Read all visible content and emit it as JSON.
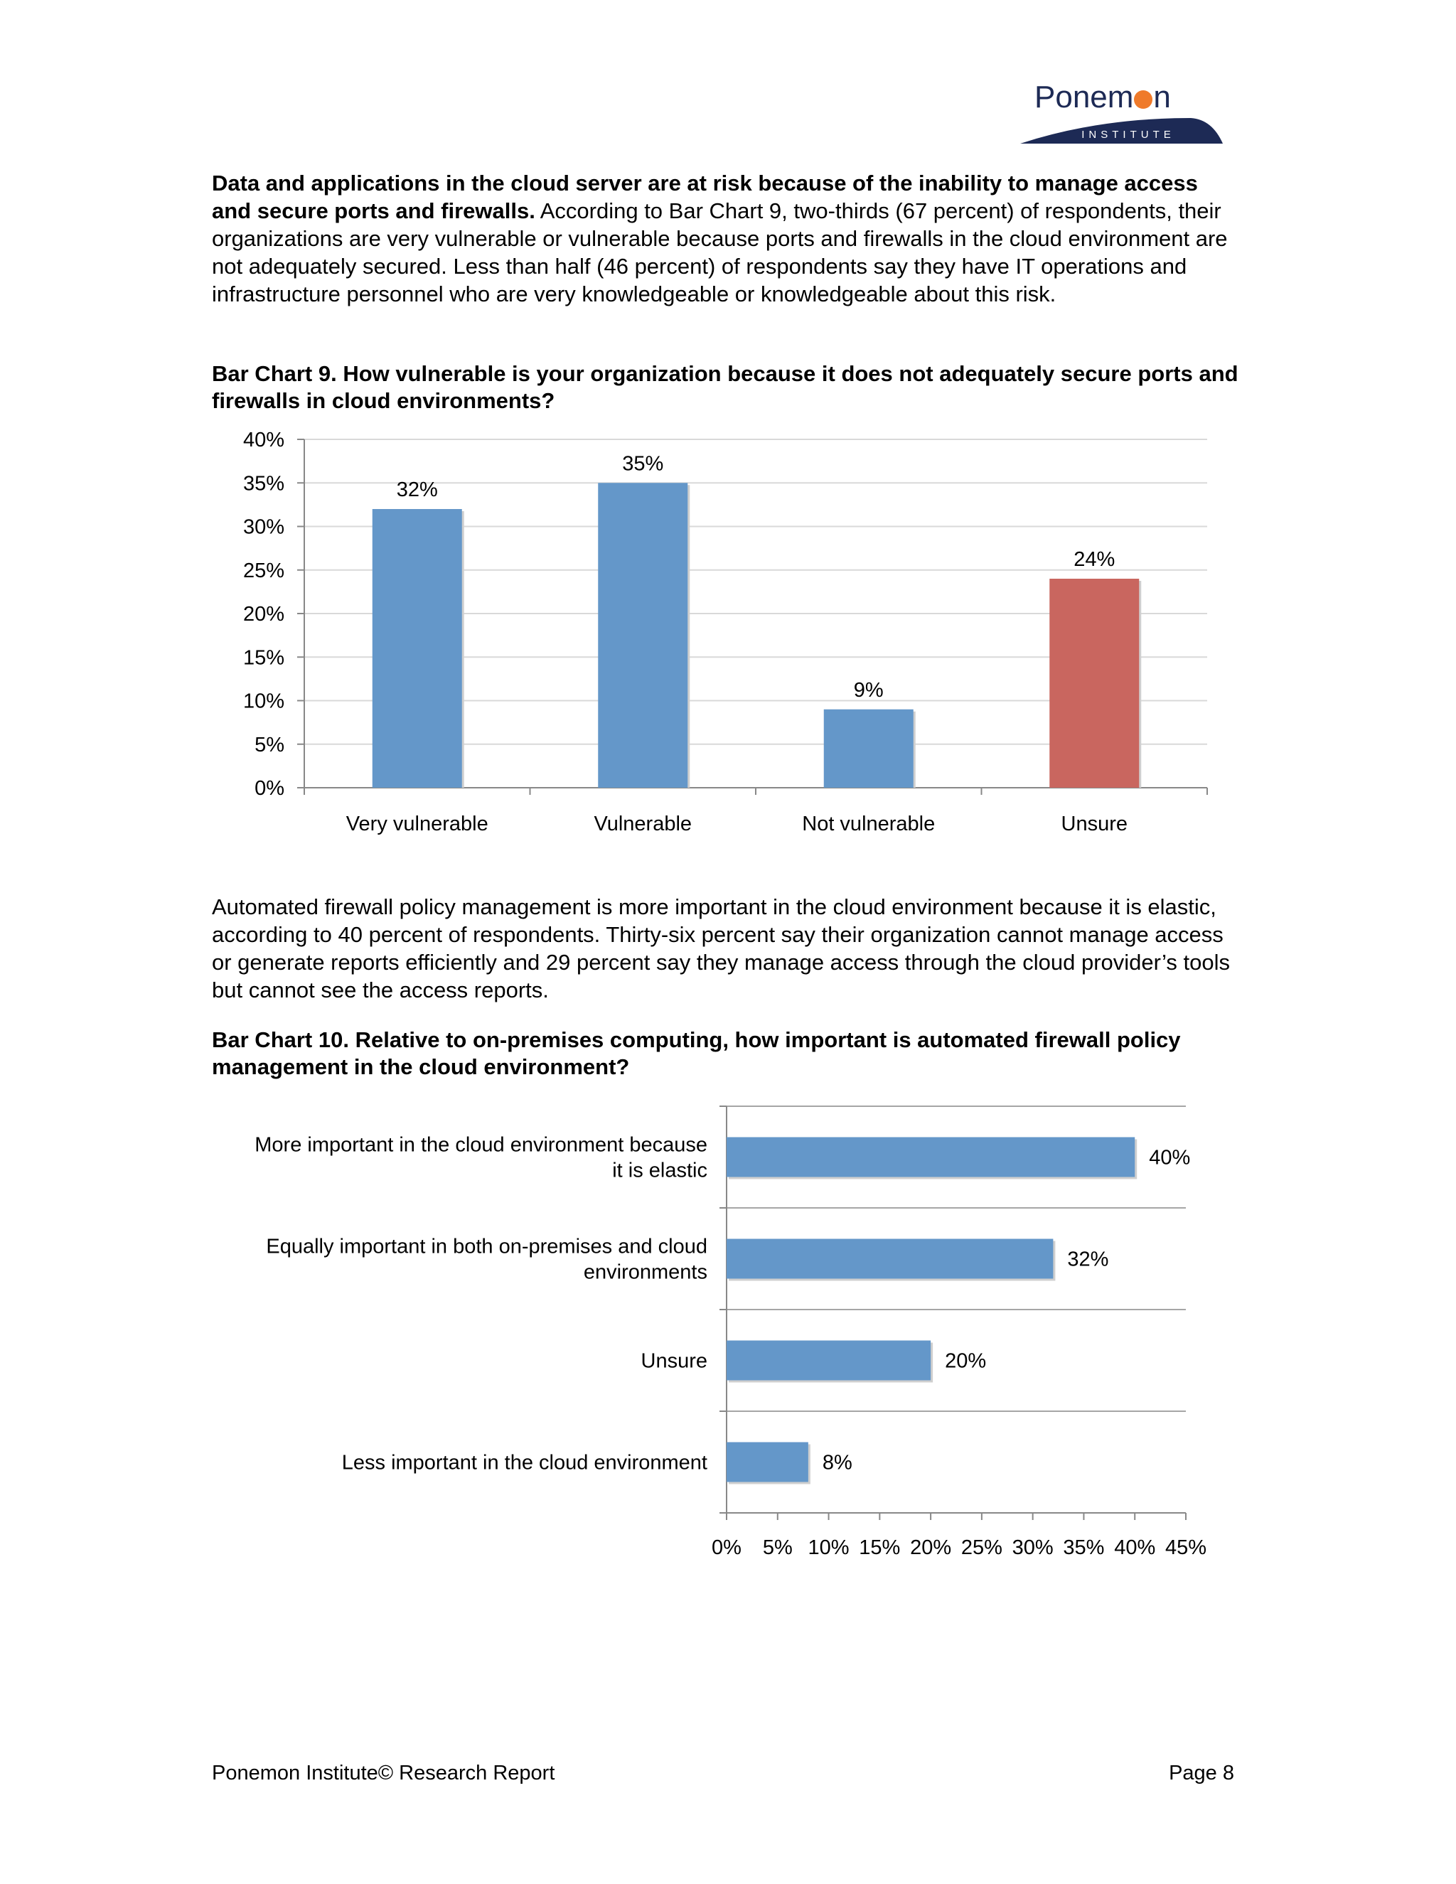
{
  "logo": {
    "name_part1": "Ponem",
    "name_part2": "n",
    "subtitle": "INSTITUTE"
  },
  "intro": {
    "bold": "Data and applications in the cloud server are at risk because of the inability to manage access and secure ports and firewalls.",
    "text": " According to Bar Chart 9, two-thirds (67 percent) of respondents, their organizations are very vulnerable or vulnerable because ports and firewalls in the cloud environment are not adequately secured. Less than half (46 percent) of respondents say they have IT operations and infrastructure personnel who are very knowledgeable or knowledgeable about this risk."
  },
  "paragraph2": "Automated firewall policy management is more important in the cloud environment because it is elastic, according to 40 percent of respondents. Thirty-six percent say their organization cannot manage access or generate reports efficiently and 29 percent say they manage access through the cloud provider’s tools but cannot see the access reports.",
  "footer": {
    "left": "Ponemon Institute© Research Report",
    "right": "Page 8"
  },
  "colors": {
    "blue": "#6497c9",
    "red": "#c9665f",
    "grid": "#d9d9d9",
    "axis": "#888888",
    "logo_navy": "#1d2a55",
    "logo_orange": "#ef7a2a"
  },
  "chart_data": [
    {
      "type": "bar",
      "orientation": "vertical",
      "title": "Bar Chart 9. How vulnerable is your organization because it does not adequately secure ports and firewalls in cloud environments?",
      "categories": [
        "Very vulnerable",
        "Vulnerable",
        "Not vulnerable",
        "Unsure"
      ],
      "values": [
        32,
        35,
        9,
        24
      ],
      "data_labels": [
        "32%",
        "35%",
        "9%",
        "24%"
      ],
      "bar_colors": [
        "#6497c9",
        "#6497c9",
        "#6497c9",
        "#c9665f"
      ],
      "ylim": [
        0,
        40
      ],
      "yticks": [
        "0%",
        "5%",
        "10%",
        "15%",
        "20%",
        "25%",
        "30%",
        "35%",
        "40%"
      ],
      "grid": true
    },
    {
      "type": "bar",
      "orientation": "horizontal",
      "title": "Bar Chart 10. Relative to on-premises computing, how important is automated firewall policy management in the cloud environment?",
      "categories": [
        [
          "More important in the cloud environment because",
          "it is elastic"
        ],
        [
          "Equally important in both on-premises and cloud",
          "environments"
        ],
        [
          "Unsure"
        ],
        [
          "Less important in the cloud environment"
        ]
      ],
      "values": [
        40,
        32,
        20,
        8
      ],
      "data_labels": [
        "40%",
        "32%",
        "20%",
        "8%"
      ],
      "bar_colors": [
        "#6497c9",
        "#6497c9",
        "#6497c9",
        "#6497c9"
      ],
      "xlim": [
        0,
        45
      ],
      "xticks": [
        "0%",
        "5%",
        "10%",
        "15%",
        "20%",
        "25%",
        "30%",
        "35%",
        "40%",
        "45%"
      ],
      "grid": true
    }
  ]
}
